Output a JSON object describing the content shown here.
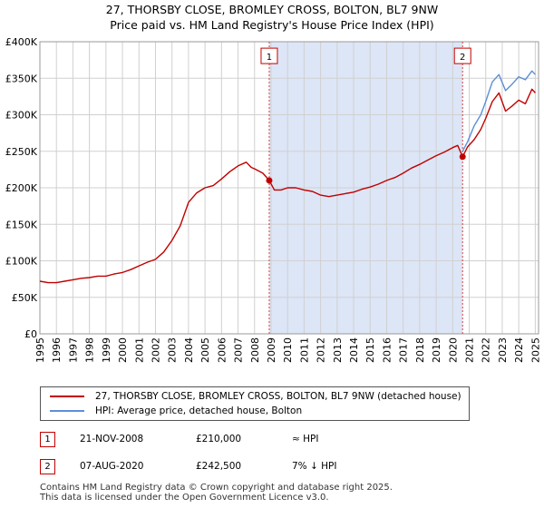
{
  "chart_data": {
    "type": "line",
    "title": "27, THORSBY CLOSE, BROMLEY CROSS, BOLTON, BL7 9NW",
    "subtitle": "Price paid vs. HM Land Registry's House Price Index (HPI)",
    "xlabel": "",
    "ylabel": "",
    "xlim": [
      1995,
      2025.2
    ],
    "ylim": [
      0,
      400000
    ],
    "y_ticks": [
      0,
      50000,
      100000,
      150000,
      200000,
      250000,
      300000,
      350000,
      400000
    ],
    "y_tick_labels": [
      "£0",
      "£50K",
      "£100K",
      "£150K",
      "£200K",
      "£250K",
      "£300K",
      "£350K",
      "£400K"
    ],
    "x_ticks": [
      "1995",
      "1996",
      "1997",
      "1998",
      "1999",
      "2000",
      "2001",
      "2002",
      "2003",
      "2004",
      "2005",
      "2006",
      "2007",
      "2008",
      "2009",
      "2010",
      "2011",
      "2012",
      "2013",
      "2014",
      "2015",
      "2016",
      "2017",
      "2018",
      "2019",
      "2020",
      "2021",
      "2022",
      "2023",
      "2024",
      "2025"
    ],
    "grid": true,
    "shaded_region": {
      "from": 2008.89,
      "to": 2020.6,
      "color": "#dde6f7"
    },
    "series": [
      {
        "name": "27, THORSBY CLOSE, BROMLEY CROSS, BOLTON, BL7 9NW (detached house)",
        "color": "#c00000",
        "x": [
          1995.0,
          1995.5,
          1996.0,
          1996.5,
          1997.0,
          1997.5,
          1998.0,
          1998.5,
          1999.0,
          1999.5,
          2000.0,
          2000.5,
          2001.0,
          2001.5,
          2002.0,
          2002.5,
          2003.0,
          2003.5,
          2004.0,
          2004.5,
          2005.0,
          2005.5,
          2006.0,
          2006.5,
          2007.0,
          2007.5,
          2007.8,
          2008.0,
          2008.5,
          2008.89,
          2009.2,
          2009.6,
          2010.0,
          2010.5,
          2011.0,
          2011.5,
          2012.0,
          2012.5,
          2013.0,
          2013.5,
          2014.0,
          2014.5,
          2015.0,
          2015.5,
          2016.0,
          2016.5,
          2017.0,
          2017.5,
          2018.0,
          2018.5,
          2019.0,
          2019.5,
          2020.0,
          2020.3,
          2020.6,
          2020.9,
          2021.3,
          2021.7,
          2022.0,
          2022.4,
          2022.8,
          2023.2,
          2023.6,
          2024.0,
          2024.4,
          2024.8,
          2025.0
        ],
        "y": [
          72000,
          70000,
          70000,
          72000,
          74000,
          76000,
          77000,
          79000,
          79000,
          82000,
          84000,
          88000,
          93000,
          98000,
          102000,
          112000,
          128000,
          148000,
          180000,
          193000,
          200000,
          203000,
          212000,
          222000,
          230000,
          235000,
          228000,
          226000,
          220000,
          210000,
          197000,
          197000,
          200000,
          200000,
          197000,
          195000,
          190000,
          188000,
          190000,
          192000,
          194000,
          198000,
          201000,
          205000,
          210000,
          214000,
          220000,
          227000,
          232000,
          238000,
          244000,
          249000,
          255000,
          258000,
          242500,
          256000,
          266000,
          280000,
          295000,
          318000,
          330000,
          305000,
          312000,
          320000,
          315000,
          335000,
          330000
        ]
      },
      {
        "name": "HPI: Average price, detached house, Bolton",
        "color": "#5b8fd6",
        "x": [
          2020.6,
          2020.9,
          2021.3,
          2021.7,
          2022.0,
          2022.4,
          2022.8,
          2023.2,
          2023.6,
          2024.0,
          2024.4,
          2024.8,
          2025.0
        ],
        "y": [
          250000,
          263000,
          285000,
          300000,
          318000,
          345000,
          355000,
          333000,
          342000,
          352000,
          348000,
          360000,
          355000
        ]
      }
    ],
    "markers": [
      {
        "label": "1",
        "x": 2008.89,
        "y": 210000,
        "badge_y": 380000
      },
      {
        "label": "2",
        "x": 2020.6,
        "y": 242500,
        "badge_y": 380000
      }
    ]
  },
  "header": {
    "title": "27, THORSBY CLOSE, BROMLEY CROSS, BOLTON, BL7 9NW",
    "subtitle": "Price paid vs. HM Land Registry's House Price Index (HPI)"
  },
  "legend": {
    "property_label": "27, THORSBY CLOSE, BROMLEY CROSS, BOLTON, BL7 9NW (detached house)",
    "hpi_label": "HPI: Average price, detached house, Bolton",
    "property_color": "#c00000",
    "hpi_color": "#5b8fd6"
  },
  "transactions": [
    {
      "num": "1",
      "date": "21-NOV-2008",
      "price": "£210,000",
      "relation": "≈ HPI"
    },
    {
      "num": "2",
      "date": "07-AUG-2020",
      "price": "£242,500",
      "relation": "7% ↓ HPI"
    }
  ],
  "footer": {
    "line1": "Contains HM Land Registry data © Crown copyright and database right 2025.",
    "line2": "This data is licensed under the Open Government Licence v3.0."
  }
}
